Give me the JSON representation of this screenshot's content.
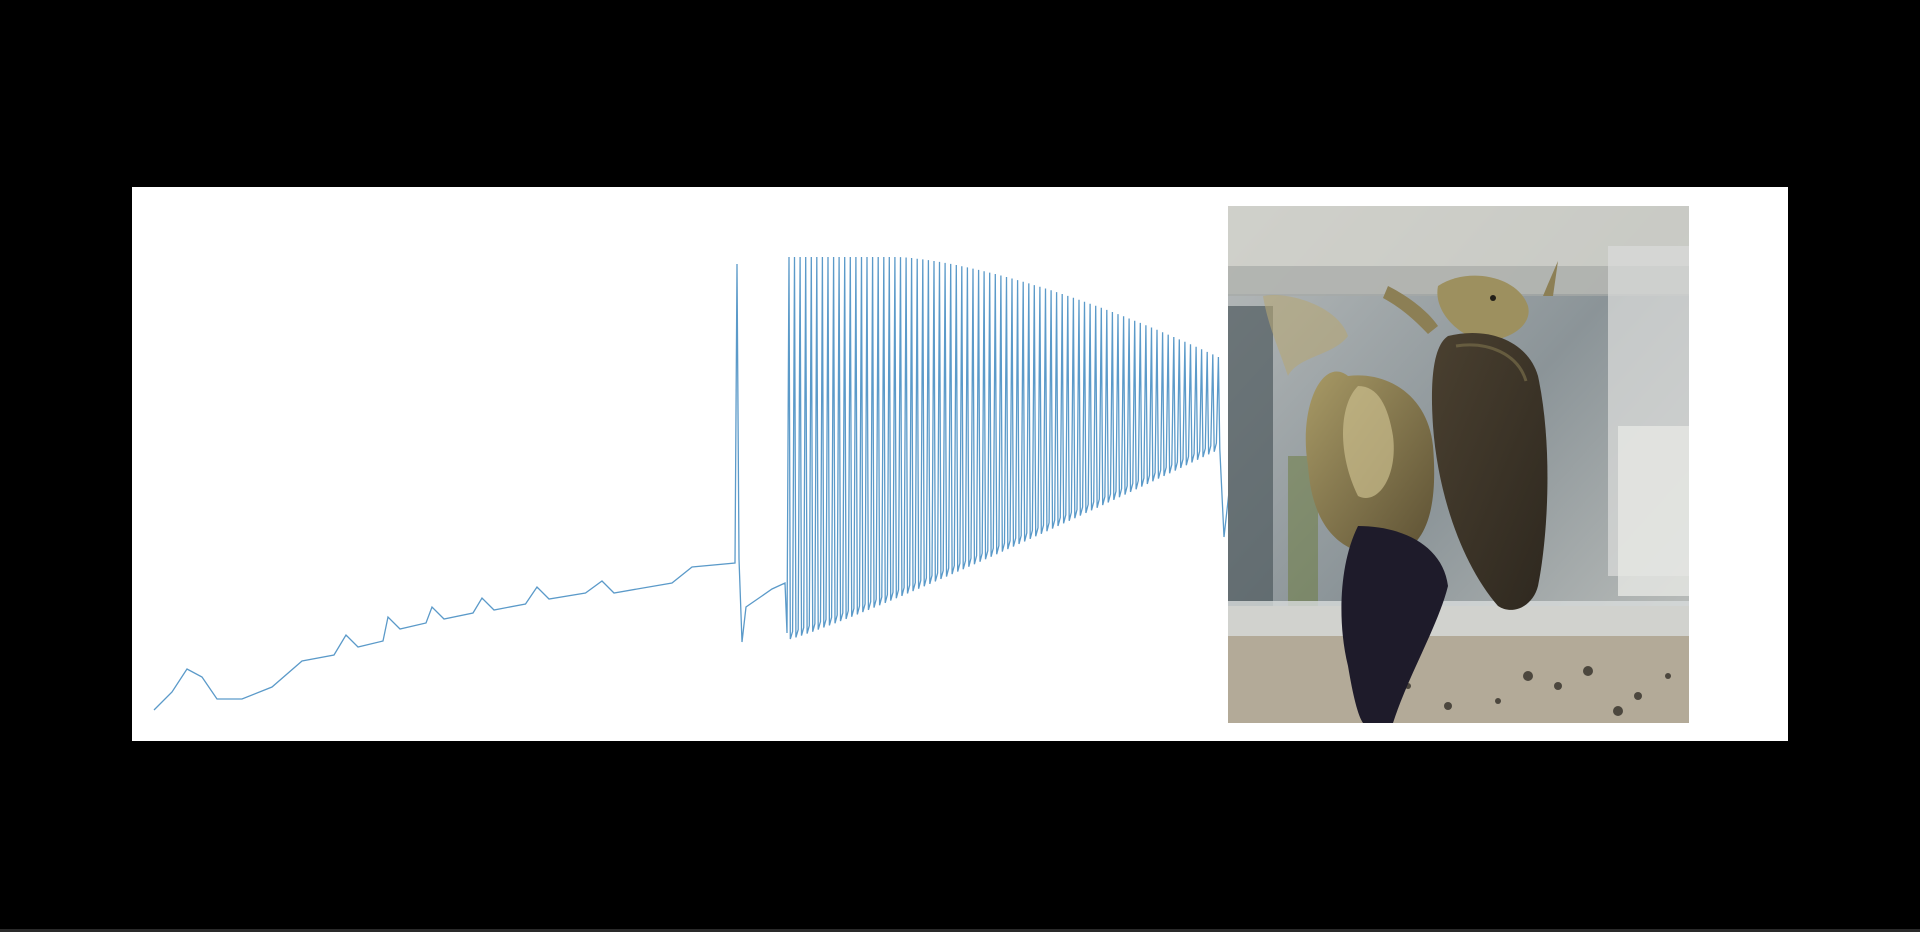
{
  "media": {
    "background_color": "#000000",
    "panel_color": "#ffffff",
    "trace": {
      "icon": "voltage-trace",
      "color": "#5b9ac9",
      "phases": [
        {
          "kind": "subthreshold",
          "note": ""
        },
        {
          "kind": "single-spike"
        },
        {
          "kind": "spike-train",
          "spike_count": 78
        }
      ]
    },
    "photo": {
      "icon": "snail-photo",
      "colors": {
        "shell": "#8a7a4e",
        "foot": "#3e3628",
        "dark_shell": "#1e1b2a",
        "container": "#c9cdd0",
        "gravel": "#b3aa98"
      }
    }
  }
}
